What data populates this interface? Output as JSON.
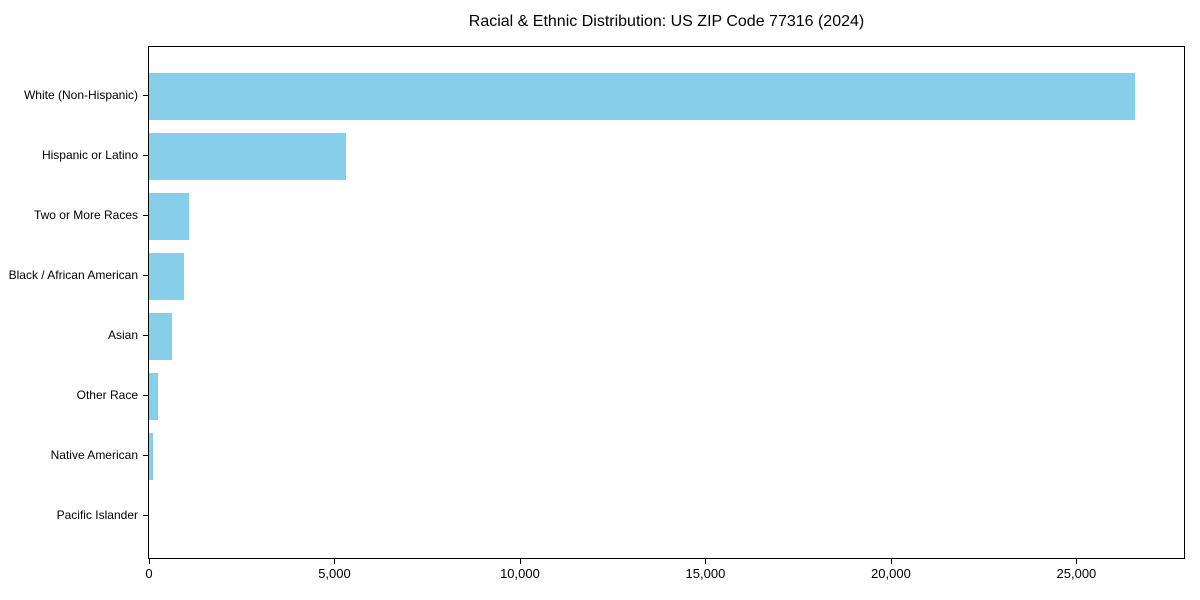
{
  "chart_data": {
    "type": "bar",
    "orientation": "horizontal",
    "title": "Racial & Ethnic Distribution: US ZIP Code 77316 (2024)",
    "categories": [
      "White (Non-Hispanic)",
      "Hispanic or Latino",
      "Two or More Races",
      "Black / African American",
      "Asian",
      "Other Race",
      "Native American",
      "Pacific Islander"
    ],
    "values": [
      26590,
      5300,
      1080,
      940,
      620,
      250,
      120,
      0
    ],
    "xlabel": "",
    "ylabel": "",
    "xlim": [
      0,
      27900
    ],
    "xticks": [
      0,
      5000,
      10000,
      15000,
      20000,
      25000
    ],
    "xtick_labels": [
      "0",
      "5,000",
      "10,000",
      "15,000",
      "20,000",
      "25,000"
    ],
    "bar_color": "#87CEEB",
    "axis_color": "#000000",
    "text_color": "#000000",
    "background_color": "#ffffff",
    "grid": false,
    "legend_position": "none"
  }
}
